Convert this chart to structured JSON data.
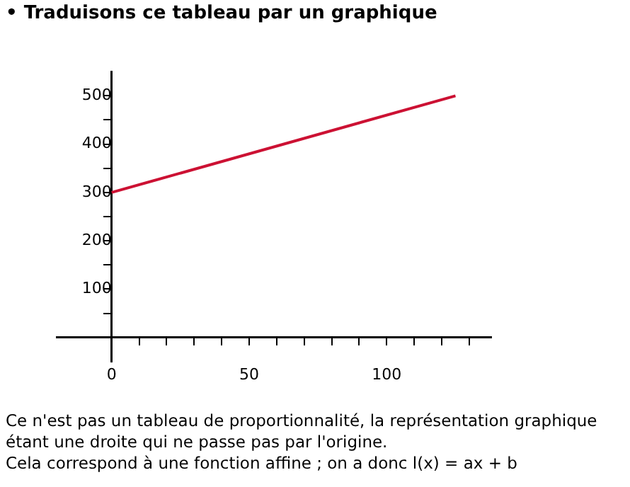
{
  "chart_data": {
    "type": "line",
    "title": "• Traduisons ce tableau par un graphique",
    "x": [
      0,
      125
    ],
    "series": [
      {
        "color": "#cc1133",
        "values": [
          300,
          500
        ]
      }
    ],
    "xlim": [
      -20,
      138
    ],
    "ylim": [
      -50,
      550
    ],
    "xticks": [
      0,
      {
        "value": 10,
        "label": null
      },
      {
        "value": 20,
        "label": null
      },
      {
        "value": 30,
        "label": null
      },
      {
        "value": 40,
        "label": null
      },
      50,
      {
        "value": 60,
        "label": null
      },
      {
        "value": 70,
        "label": null
      },
      {
        "value": 80,
        "label": null
      },
      {
        "value": 90,
        "label": null
      },
      100,
      {
        "value": 110,
        "label": null
      },
      {
        "value": 120,
        "label": null
      },
      {
        "value": 130,
        "label": null
      }
    ],
    "yticks": [
      {
        "value": 0,
        "label": null
      },
      {
        "value": 50,
        "label": null
      },
      100,
      {
        "value": 150,
        "label": null
      },
      200,
      {
        "value": 250,
        "label": null
      },
      300,
      {
        "value": 350,
        "label": null
      },
      400,
      {
        "value": 450,
        "label": null
      },
      500
    ],
    "grid": false,
    "legend": false,
    "marker": "none",
    "line_style": "solid",
    "annotations": [
      "Ce n'est pas un tableau de proportionnalité, la représentation graphique étant une droite qui ne passe pas par l'origine.",
      "Cela correspond à une fonction affine ; on a donc l(x) = ax + b"
    ]
  }
}
